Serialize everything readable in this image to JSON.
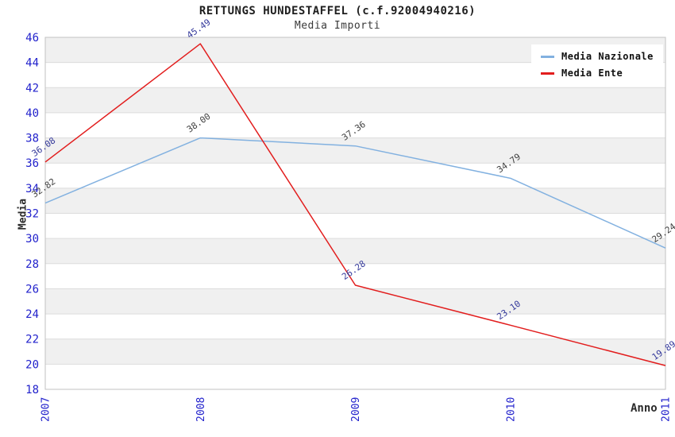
{
  "chart_data": {
    "type": "line",
    "title": "RETTUNGS HUNDESTAFFEL (c.f.92004940216)",
    "subtitle": "Media Importi",
    "xlabel": "Anno",
    "ylabel": "Media",
    "categories": [
      "2007",
      "2008",
      "2009",
      "2010",
      "2011"
    ],
    "series": [
      {
        "name": "Media Nazionale",
        "color": "#82b1e0",
        "label_color": "#3f3f3f",
        "values": [
          32.82,
          38.0,
          37.36,
          34.79,
          29.24
        ],
        "labels": [
          "32.82",
          "38.00",
          "37.36",
          "34.79",
          "29.24"
        ]
      },
      {
        "name": "Media Ente",
        "color": "#e21d1d",
        "label_color": "#34399b",
        "values": [
          36.08,
          45.49,
          26.28,
          23.1,
          19.89
        ],
        "labels": [
          "36.08",
          "45.49",
          "26.28",
          "23.10",
          "19.89"
        ]
      }
    ],
    "ylim": [
      18,
      46
    ],
    "ytick_step": 2,
    "grid": true,
    "band_colors": [
      "#f0f0f0",
      "#ffffff"
    ],
    "gridline_color": "#dcdcdc",
    "border_color": "#c2c2c2",
    "tick_color": "#2222cc",
    "legend_position": "top-right"
  }
}
